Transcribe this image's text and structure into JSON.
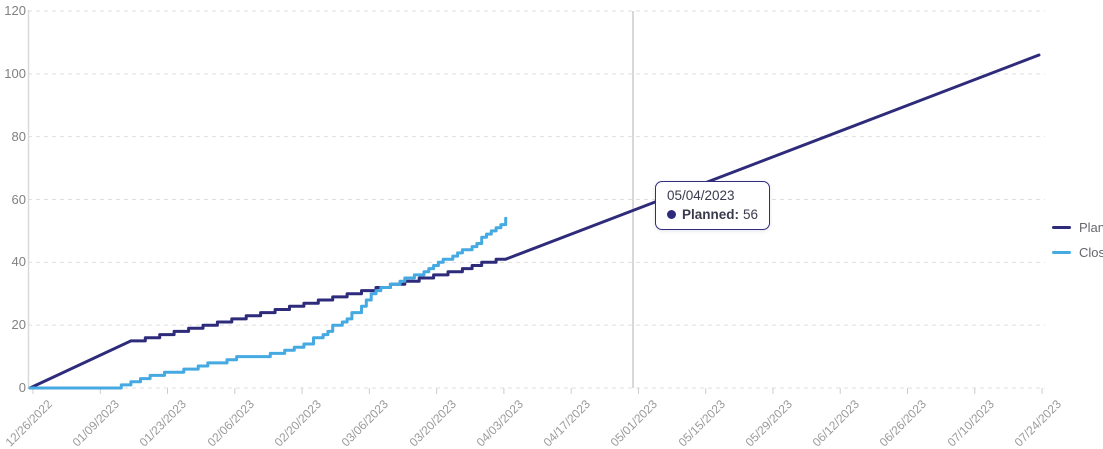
{
  "chart_data": {
    "type": "line",
    "title": "",
    "xlabel": "",
    "ylabel": "",
    "ylim": [
      0,
      120
    ],
    "y_ticks": [
      120,
      100,
      80,
      60,
      40,
      20,
      0
    ],
    "x_ticks": [
      "12/26/2022",
      "01/09/2023",
      "01/23/2023",
      "02/06/2023",
      "02/20/2023",
      "03/06/2023",
      "03/20/2023",
      "04/03/2023",
      "04/17/2023",
      "05/01/2023",
      "05/15/2023",
      "05/29/2023",
      "06/12/2023",
      "06/26/2023",
      "07/10/2023",
      "07/24/2023"
    ],
    "grid": "dashed horizontal gridlines",
    "legend_position": "right",
    "series": [
      {
        "name": "Planned",
        "color": "#2e2b7b",
        "points": [
          [
            0,
            0
          ],
          [
            21,
            15
          ],
          [
            24,
            15
          ],
          [
            24,
            16
          ],
          [
            27,
            16
          ],
          [
            27,
            17
          ],
          [
            30,
            17
          ],
          [
            30,
            18
          ],
          [
            33,
            18
          ],
          [
            33,
            19
          ],
          [
            36,
            19
          ],
          [
            36,
            20
          ],
          [
            39,
            20
          ],
          [
            39,
            21
          ],
          [
            42,
            21
          ],
          [
            42,
            22
          ],
          [
            45,
            22
          ],
          [
            45,
            23
          ],
          [
            48,
            23
          ],
          [
            48,
            24
          ],
          [
            51,
            24
          ],
          [
            51,
            25
          ],
          [
            54,
            25
          ],
          [
            54,
            26
          ],
          [
            57,
            26
          ],
          [
            57,
            27
          ],
          [
            60,
            27
          ],
          [
            60,
            28
          ],
          [
            63,
            28
          ],
          [
            63,
            29
          ],
          [
            66,
            29
          ],
          [
            66,
            30
          ],
          [
            69,
            30
          ],
          [
            69,
            31
          ],
          [
            72,
            31
          ],
          [
            72,
            32
          ],
          [
            75,
            32
          ],
          [
            75,
            33
          ],
          [
            78,
            33
          ],
          [
            78,
            34
          ],
          [
            81,
            34
          ],
          [
            81,
            35
          ],
          [
            84,
            35
          ],
          [
            84,
            36
          ],
          [
            87,
            36
          ],
          [
            87,
            37
          ],
          [
            90,
            37
          ],
          [
            90,
            38
          ],
          [
            92,
            38
          ],
          [
            92,
            39
          ],
          [
            94,
            39
          ],
          [
            94,
            40
          ],
          [
            97,
            40
          ],
          [
            97,
            41
          ],
          [
            99,
            41
          ],
          [
            210,
            106
          ]
        ]
      },
      {
        "name": "Closed",
        "color": "#45a9e2",
        "points": [
          [
            0,
            0
          ],
          [
            19,
            0
          ],
          [
            19,
            1
          ],
          [
            21,
            1
          ],
          [
            21,
            2
          ],
          [
            23,
            2
          ],
          [
            23,
            3
          ],
          [
            25,
            3
          ],
          [
            25,
            4
          ],
          [
            28,
            4
          ],
          [
            28,
            5
          ],
          [
            32,
            5
          ],
          [
            32,
            6
          ],
          [
            35,
            6
          ],
          [
            35,
            7
          ],
          [
            37,
            7
          ],
          [
            37,
            8
          ],
          [
            41,
            8
          ],
          [
            41,
            9
          ],
          [
            43,
            9
          ],
          [
            43,
            10
          ],
          [
            50,
            10
          ],
          [
            50,
            11
          ],
          [
            53,
            11
          ],
          [
            53,
            12
          ],
          [
            55,
            12
          ],
          [
            55,
            13
          ],
          [
            57,
            13
          ],
          [
            57,
            14
          ],
          [
            59,
            14
          ],
          [
            59,
            16
          ],
          [
            61,
            16
          ],
          [
            61,
            17
          ],
          [
            62,
            17
          ],
          [
            62,
            18
          ],
          [
            63,
            18
          ],
          [
            63,
            20
          ],
          [
            65,
            20
          ],
          [
            65,
            21
          ],
          [
            66,
            21
          ],
          [
            66,
            22
          ],
          [
            67,
            22
          ],
          [
            67,
            24
          ],
          [
            69,
            24
          ],
          [
            69,
            26
          ],
          [
            70,
            26
          ],
          [
            70,
            28
          ],
          [
            71,
            28
          ],
          [
            71,
            30
          ],
          [
            72,
            30
          ],
          [
            72,
            31
          ],
          [
            73,
            31
          ],
          [
            73,
            32
          ],
          [
            75,
            32
          ],
          [
            75,
            33
          ],
          [
            77,
            33
          ],
          [
            77,
            34
          ],
          [
            78,
            34
          ],
          [
            78,
            35
          ],
          [
            80,
            35
          ],
          [
            80,
            36
          ],
          [
            82,
            36
          ],
          [
            82,
            37
          ],
          [
            83,
            37
          ],
          [
            83,
            38
          ],
          [
            84,
            38
          ],
          [
            84,
            39
          ],
          [
            85,
            39
          ],
          [
            85,
            40
          ],
          [
            86,
            40
          ],
          [
            86,
            41
          ],
          [
            88,
            41
          ],
          [
            88,
            42
          ],
          [
            89,
            42
          ],
          [
            89,
            43
          ],
          [
            90,
            43
          ],
          [
            90,
            44
          ],
          [
            92,
            44
          ],
          [
            92,
            45
          ],
          [
            93,
            45
          ],
          [
            93,
            46
          ],
          [
            94,
            46
          ],
          [
            94,
            48
          ],
          [
            95,
            48
          ],
          [
            95,
            49
          ],
          [
            96,
            49
          ],
          [
            96,
            50
          ],
          [
            97,
            50
          ],
          [
            97,
            51
          ],
          [
            98,
            51
          ],
          [
            98,
            52
          ],
          [
            99,
            52
          ],
          [
            99,
            54
          ]
        ]
      }
    ]
  },
  "tooltip": {
    "date": "05/04/2023",
    "series_label": "Planned:",
    "value": "56"
  },
  "legend": {
    "items": [
      {
        "label": "Planned",
        "color": "#2e2b7b"
      },
      {
        "label": "Closed",
        "color": "#45a9e2"
      }
    ]
  }
}
